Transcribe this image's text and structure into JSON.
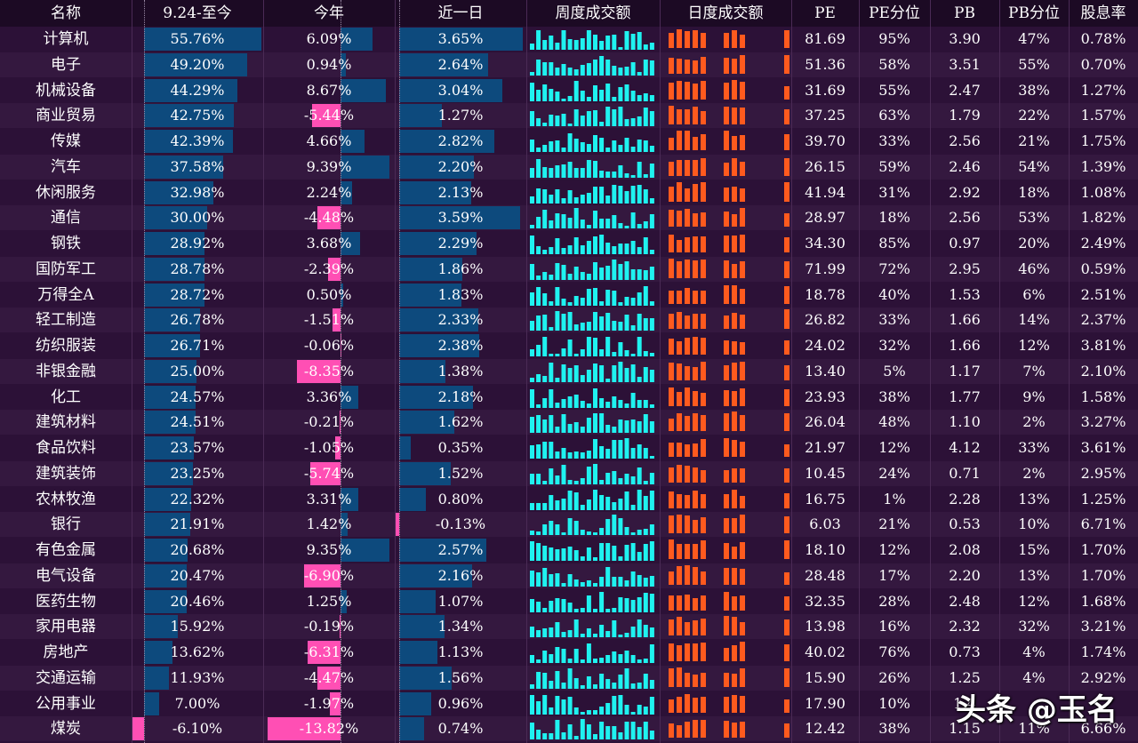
{
  "headers": {
    "name": "名称",
    "since924": "9.24-至今",
    "ytd": "今年",
    "day1": "近一日",
    "weekly": "周度成交额",
    "daily": "日度成交额",
    "pe": "PE",
    "pe_pct": "PE分位",
    "pb": "PB",
    "pb_pct": "PB分位",
    "div": "股息率"
  },
  "watermark": "头条 @玉名",
  "colors": {
    "pos_bar": "#0d4a7d",
    "neg_bar": "#ff4fb4",
    "weekly": "#1ff2f0",
    "daily": "#ff5a1e",
    "background": "#2c1137"
  },
  "chart_data": {
    "type": "table",
    "columns": [
      "名称",
      "9.24-至今",
      "今年",
      "近一日",
      "周度成交额",
      "日度成交额",
      "PE",
      "PE分位",
      "PB",
      "PB分位",
      "股息率"
    ],
    "rows": [
      {
        "name": "计算机",
        "since924": "55.76%",
        "ytd": "6.09%",
        "day1": "3.65%",
        "pe": "81.69",
        "pe_pct": "95%",
        "pb": "3.90",
        "pb_pct": "47%",
        "div": "0.78%"
      },
      {
        "name": "电子",
        "since924": "49.20%",
        "ytd": "0.94%",
        "day1": "2.64%",
        "pe": "51.36",
        "pe_pct": "58%",
        "pb": "3.51",
        "pb_pct": "55%",
        "div": "0.70%"
      },
      {
        "name": "机械设备",
        "since924": "44.29%",
        "ytd": "8.67%",
        "day1": "3.04%",
        "pe": "31.69",
        "pe_pct": "55%",
        "pb": "2.47",
        "pb_pct": "38%",
        "div": "1.27%"
      },
      {
        "name": "商业贸易",
        "since924": "42.75%",
        "ytd": "-5.44%",
        "day1": "1.27%",
        "pe": "37.25",
        "pe_pct": "63%",
        "pb": "1.79",
        "pb_pct": "22%",
        "div": "1.57%"
      },
      {
        "name": "传媒",
        "since924": "42.39%",
        "ytd": "4.66%",
        "day1": "2.82%",
        "pe": "39.70",
        "pe_pct": "33%",
        "pb": "2.56",
        "pb_pct": "21%",
        "div": "1.75%"
      },
      {
        "name": "汽车",
        "since924": "37.58%",
        "ytd": "9.39%",
        "day1": "2.20%",
        "pe": "26.15",
        "pe_pct": "59%",
        "pb": "2.46",
        "pb_pct": "54%",
        "div": "1.39%"
      },
      {
        "name": "休闲服务",
        "since924": "32.98%",
        "ytd": "2.24%",
        "day1": "2.13%",
        "pe": "41.94",
        "pe_pct": "31%",
        "pb": "2.92",
        "pb_pct": "18%",
        "div": "1.08%"
      },
      {
        "name": "通信",
        "since924": "30.00%",
        "ytd": "-4.48%",
        "day1": "3.59%",
        "pe": "28.97",
        "pe_pct": "18%",
        "pb": "2.56",
        "pb_pct": "53%",
        "div": "1.82%"
      },
      {
        "name": "钢铁",
        "since924": "28.92%",
        "ytd": "3.68%",
        "day1": "2.29%",
        "pe": "34.30",
        "pe_pct": "85%",
        "pb": "0.97",
        "pb_pct": "20%",
        "div": "2.49%"
      },
      {
        "name": "国防军工",
        "since924": "28.78%",
        "ytd": "-2.39%",
        "day1": "1.86%",
        "pe": "71.99",
        "pe_pct": "72%",
        "pb": "2.95",
        "pb_pct": "46%",
        "div": "0.59%"
      },
      {
        "name": "万得全A",
        "since924": "28.72%",
        "ytd": "0.50%",
        "day1": "1.83%",
        "pe": "18.78",
        "pe_pct": "40%",
        "pb": "1.53",
        "pb_pct": "6%",
        "div": "2.51%"
      },
      {
        "name": "轻工制造",
        "since924": "26.78%",
        "ytd": "-1.51%",
        "day1": "2.33%",
        "pe": "26.82",
        "pe_pct": "33%",
        "pb": "1.66",
        "pb_pct": "14%",
        "div": "2.37%"
      },
      {
        "name": "纺织服装",
        "since924": "26.71%",
        "ytd": "-0.06%",
        "day1": "2.38%",
        "pe": "24.02",
        "pe_pct": "32%",
        "pb": "1.66",
        "pb_pct": "12%",
        "div": "3.81%"
      },
      {
        "name": "非银金融",
        "since924": "25.00%",
        "ytd": "-8.35%",
        "day1": "1.38%",
        "pe": "13.40",
        "pe_pct": "5%",
        "pb": "1.17",
        "pb_pct": "7%",
        "div": "2.10%"
      },
      {
        "name": "化工",
        "since924": "24.57%",
        "ytd": "3.36%",
        "day1": "2.18%",
        "pe": "23.93",
        "pe_pct": "38%",
        "pb": "1.77",
        "pb_pct": "9%",
        "div": "1.58%"
      },
      {
        "name": "建筑材料",
        "since924": "24.51%",
        "ytd": "-0.21%",
        "day1": "1.62%",
        "pe": "26.04",
        "pe_pct": "48%",
        "pb": "1.10",
        "pb_pct": "2%",
        "div": "3.27%"
      },
      {
        "name": "食品饮料",
        "since924": "23.57%",
        "ytd": "-1.05%",
        "day1": "0.35%",
        "pe": "21.97",
        "pe_pct": "12%",
        "pb": "4.12",
        "pb_pct": "33%",
        "div": "3.61%"
      },
      {
        "name": "建筑装饰",
        "since924": "23.25%",
        "ytd": "-5.74%",
        "day1": "1.52%",
        "pe": "10.45",
        "pe_pct": "24%",
        "pb": "0.71",
        "pb_pct": "2%",
        "div": "2.95%"
      },
      {
        "name": "农林牧渔",
        "since924": "22.32%",
        "ytd": "3.31%",
        "day1": "0.80%",
        "pe": "16.75",
        "pe_pct": "1%",
        "pb": "2.28",
        "pb_pct": "13%",
        "div": "1.25%"
      },
      {
        "name": "银行",
        "since924": "21.91%",
        "ytd": "1.42%",
        "day1": "-0.13%",
        "pe": "6.03",
        "pe_pct": "21%",
        "pb": "0.53",
        "pb_pct": "10%",
        "div": "6.71%"
      },
      {
        "name": "有色金属",
        "since924": "20.68%",
        "ytd": "9.35%",
        "day1": "2.57%",
        "pe": "18.10",
        "pe_pct": "12%",
        "pb": "2.08",
        "pb_pct": "15%",
        "div": "1.70%"
      },
      {
        "name": "电气设备",
        "since924": "20.47%",
        "ytd": "-6.90%",
        "day1": "2.16%",
        "pe": "28.48",
        "pe_pct": "17%",
        "pb": "2.20",
        "pb_pct": "13%",
        "div": "1.70%"
      },
      {
        "name": "医药生物",
        "since924": "20.46%",
        "ytd": "1.25%",
        "day1": "1.07%",
        "pe": "32.35",
        "pe_pct": "28%",
        "pb": "2.48",
        "pb_pct": "12%",
        "div": "1.68%"
      },
      {
        "name": "家用电器",
        "since924": "15.92%",
        "ytd": "-0.19%",
        "day1": "1.34%",
        "pe": "13.98",
        "pe_pct": "16%",
        "pb": "2.32",
        "pb_pct": "32%",
        "div": "3.21%"
      },
      {
        "name": "房地产",
        "since924": "13.62%",
        "ytd": "-6.31%",
        "day1": "1.13%",
        "pe": "40.02",
        "pe_pct": "76%",
        "pb": "0.73",
        "pb_pct": "4%",
        "div": "1.74%"
      },
      {
        "name": "交通运输",
        "since924": "11.93%",
        "ytd": "-4.47%",
        "day1": "1.56%",
        "pe": "15.90",
        "pe_pct": "26%",
        "pb": "1.25",
        "pb_pct": "4%",
        "div": "2.92%"
      },
      {
        "name": "公用事业",
        "since924": "7.00%",
        "ytd": "-1.97%",
        "day1": "0.96%",
        "pe": "17.90",
        "pe_pct": "10%",
        "pb": "1.4",
        "pb_pct": "",
        "div": ""
      },
      {
        "name": "煤炭",
        "since924": "-6.10%",
        "ytd": "-13.82%",
        "day1": "0.74%",
        "pe": "12.42",
        "pe_pct": "38%",
        "pb": "1.15",
        "pb_pct": "11%",
        "div": "6.66%"
      }
    ]
  }
}
